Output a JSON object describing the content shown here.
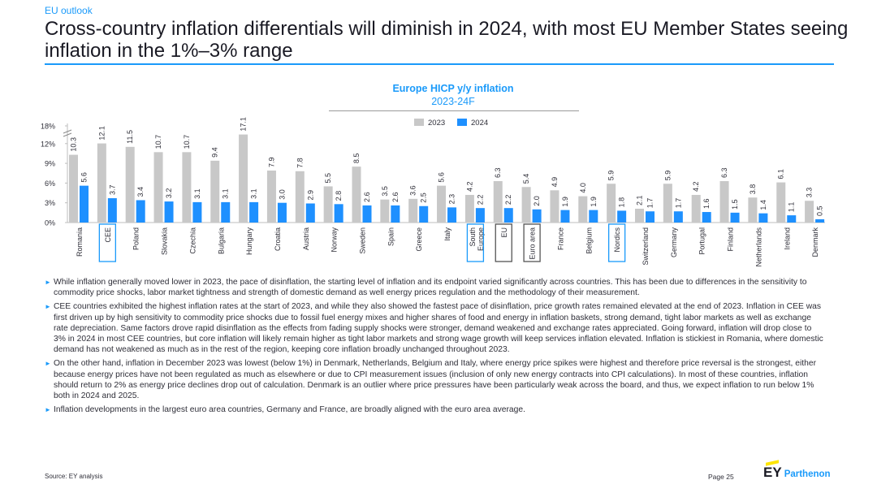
{
  "header": {
    "kicker": "EU outlook",
    "title": "Cross-country inflation differentials will diminish in 2024, with most EU Member States seeing inflation in the 1%–3% range"
  },
  "colors": {
    "accent": "#1a9afa",
    "series_2023": "#c8c8c8",
    "series_2024": "#1e90ff",
    "highlight_blue": "#1a9afa",
    "highlight_dark": "#555555"
  },
  "chart_data": {
    "type": "bar",
    "title": "Europe HICP y/y inflation",
    "subtitle": "2023-24F",
    "yticks": [
      "0%",
      "3%",
      "6%",
      "9%",
      "12%",
      "18%"
    ],
    "axis_break": "between 12% and 18%",
    "legend": {
      "placement": "top",
      "labels": [
        "2023",
        "2024"
      ]
    },
    "categories": [
      "Romania",
      "CEE",
      "Poland",
      "Slovakia",
      "Czechia",
      "Bulgaria",
      "Hungary",
      "Croatia",
      "Austria",
      "Norway",
      "Sweden",
      "Spain",
      "Greece",
      "Italy",
      "South Europe",
      "EU",
      "Euro area",
      "France",
      "Belgium",
      "Nordics",
      "Switzerland",
      "Germany",
      "Portugal",
      "Finland",
      "Netherlands",
      "Ireland",
      "Denmark"
    ],
    "series": [
      {
        "name": "2023",
        "values": [
          10.3,
          12.1,
          11.5,
          10.7,
          10.7,
          9.4,
          17.1,
          7.9,
          7.8,
          5.5,
          8.5,
          3.5,
          3.6,
          5.6,
          4.2,
          6.3,
          5.4,
          4.9,
          4.0,
          5.9,
          2.1,
          5.9,
          4.2,
          6.3,
          3.8,
          6.1,
          3.3
        ]
      },
      {
        "name": "2024",
        "values": [
          5.6,
          3.7,
          3.4,
          3.2,
          3.1,
          3.1,
          3.1,
          3.0,
          2.9,
          2.8,
          2.6,
          2.6,
          2.5,
          2.3,
          2.2,
          2.2,
          2.0,
          1.9,
          1.9,
          1.8,
          1.7,
          1.7,
          1.6,
          1.5,
          1.4,
          1.1,
          0.5
        ]
      }
    ],
    "highlighted_categories": {
      "CEE": "blue",
      "South Europe": "blue",
      "EU": "dark",
      "Euro area": "dark",
      "Nordics": "blue"
    }
  },
  "bullets": [
    "While inflation generally moved lower in 2023, the pace of disinflation, the starting level of inflation and its endpoint varied significantly across countries. This has been due to differences in the sensitivity to commodity price shocks, labor market tightness and strength of domestic demand as well energy prices regulation and the methodology of their measurement.",
    "CEE countries exhibited the highest inflation rates at the start of 2023, and while they also showed the fastest pace of disinflation, price growth rates remained elevated at the end of 2023. Inflation in CEE was first driven up by high sensitivity to commodity price shocks due to fossil fuel energy mixes and higher shares of food and energy in inflation baskets, strong demand, tight labor markets as well as exchange rate depreciation. Same factors drove rapid disinflation as the effects from fading supply shocks were stronger, demand weakened and exchange rates appreciated. Going forward, inflation will drop close to 3% in 2024 in most CEE countries, but core inflation will likely remain higher as tight labor markets and strong wage growth will keep services inflation elevated. Inflation is stickiest in Romania, where domestic demand has not weakened as much as in the rest of the region, keeping core inflation broadly unchanged throughout 2023.",
    "On the other hand, inflation in December 2023 was lowest (below 1%) in Denmark, Netherlands, Belgium and Italy, where energy price spikes were highest and therefore price reversal is the strongest, either because energy prices have not been regulated as much as elsewhere or due to CPI measurement issues (inclusion of only new energy contracts into CPI calculations). In most of these countries, inflation should return to 2% as energy price declines drop out of calculation. Denmark is an outlier where price pressures have been particularly weak across the board, and thus, we expect inflation to run below 1% both in 2024 and 2025.",
    "Inflation developments in the largest euro area countries, Germany and France, are broadly aligned with the euro area average."
  ],
  "footer": {
    "source": "Source: EY analysis",
    "page": "Page 25",
    "logo_main": "EY",
    "logo_sub": "Parthenon"
  }
}
